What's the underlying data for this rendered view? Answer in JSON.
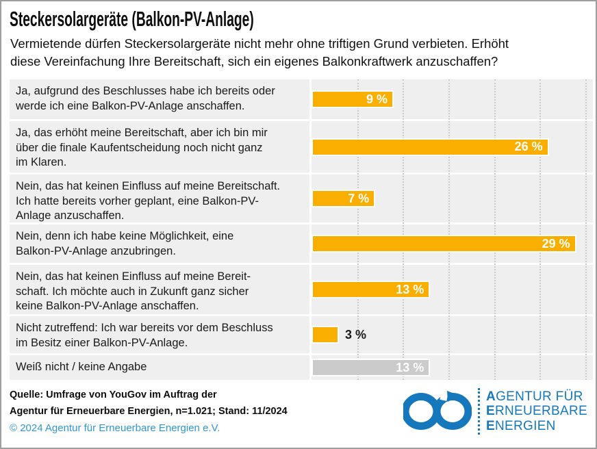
{
  "page": {
    "title": "Steckersolargeräte (Balkon-PV-Anlage)",
    "subtitle": "Vermietende dürfen Steckersolargeräte nicht mehr ohne triftigen Grund verbieten. Erhöht\ndiese Vereinfachung Ihre Bereitschaft, sich ein eigenes Balkonkraftwerk anzuschaffen?"
  },
  "chart_data": {
    "type": "bar",
    "orientation": "horizontal",
    "title": "Steckersolargeräte (Balkon-PV-Anlage)",
    "subtitle": "Vermietende dürfen Steckersolargeräte nicht mehr ohne triftigen Grund verbieten. Erhöht diese Vereinfachung Ihre Bereitschaft, sich ein eigenes Balkonkraftwerk anzuschaffen?",
    "xlabel": "",
    "ylabel": "",
    "xlim": [
      0,
      30
    ],
    "gridline_step": 5,
    "grid": "vertical-dotted",
    "value_suffix": " %",
    "categories": [
      "Ja, aufgrund des Beschlusses habe ich bereits oder werde ich eine Balkon-PV-Anlage anschaffen.",
      "Ja, das erhöht meine Bereitschaft, aber ich bin mir über die finale Kaufentscheidung noch nicht ganz im Klaren.",
      "Nein, das hat keinen Einfluss auf meine Bereitschaft. Ich hatte bereits vorher geplant, eine Balkon-PV-Anlage anzuschaffen.",
      "Nein, denn ich habe keine Möglichkeit, eine Balkon-PV-Anlage anzubringen.",
      "Nein, das hat keinen Einfluss auf meine Bereitschaft. Ich möchte auch in Zukunft ganz sicher keine Balkon-PV-Anlage anschaffen.",
      "Nicht zutreffend: Ich war bereits vor dem Beschluss im Besitz einer Balkon-PV-Anlage.",
      "Weiß nicht / keine Angabe"
    ],
    "values": [
      9,
      26,
      7,
      29,
      13,
      3,
      13
    ],
    "bars": [
      {
        "label": "Ja, aufgrund des Beschlusses habe ich bereits oder\nwerde ich eine Balkon-PV-Anlage anschaffen.",
        "value": 9,
        "value_label": "9 %",
        "color": "#F9AE00",
        "label_inside": true
      },
      {
        "label": "Ja, das erhöht meine Bereitschaft, aber ich bin mir\nüber die finale Kaufentscheidung noch nicht ganz\nim Klaren.",
        "value": 26,
        "value_label": "26 %",
        "color": "#F9AE00",
        "label_inside": true
      },
      {
        "label": "Nein, das hat keinen Einfluss auf meine Bereitschaft.\nIch hatte bereits vorher geplant, eine Balkon-PV-\nAnlage anzuschaffen.",
        "value": 7,
        "value_label": "7 %",
        "color": "#F9AE00",
        "label_inside": true
      },
      {
        "label": "Nein, denn ich habe keine Möglichkeit, eine\nBalkon-PV-Anlage anzubringen.",
        "value": 29,
        "value_label": "29 %",
        "color": "#F9AE00",
        "label_inside": true
      },
      {
        "label": "Nein, das hat keinen Einfluss auf meine Bereit-\nschaft. Ich möchte auch in Zukunft ganz sicher\nkeine Balkon-PV-Anlage anschaffen.",
        "value": 13,
        "value_label": "13 %",
        "color": "#F9AE00",
        "label_inside": true
      },
      {
        "label": "Nicht zutreffend: Ich war bereits vor dem Beschluss\nim Besitz einer Balkon-PV-Anlage.",
        "value": 3,
        "value_label": "3 %",
        "color": "#F9AE00",
        "label_inside": false
      },
      {
        "label": "Weiß nicht / keine Angabe",
        "value": 13,
        "value_label": "13 %",
        "color": "#CBCBCB",
        "label_inside": true
      }
    ],
    "colors": {
      "bar_accent": "#F9AE00",
      "bar_neutral": "#CBCBCB",
      "panel_background": "#EFEFEF",
      "gridline": "#C9C9C9"
    }
  },
  "footer": {
    "source_line1": "Quelle: Umfrage von YouGov im Auftrag der",
    "source_line2": "Agentur für Erneuerbare Energien, n=1.021; Stand: 11/2024",
    "copyright": "© 2024 Agentur für Erneuerbare Energien e.V.",
    "copyright_color": "#2E96D4"
  },
  "logo": {
    "symbol": "infinity-arrow-icon",
    "lines": [
      "AGENTUR FÜR",
      "ERNEUERBARE",
      "ENERGIEN"
    ],
    "color": "#1577BC"
  }
}
